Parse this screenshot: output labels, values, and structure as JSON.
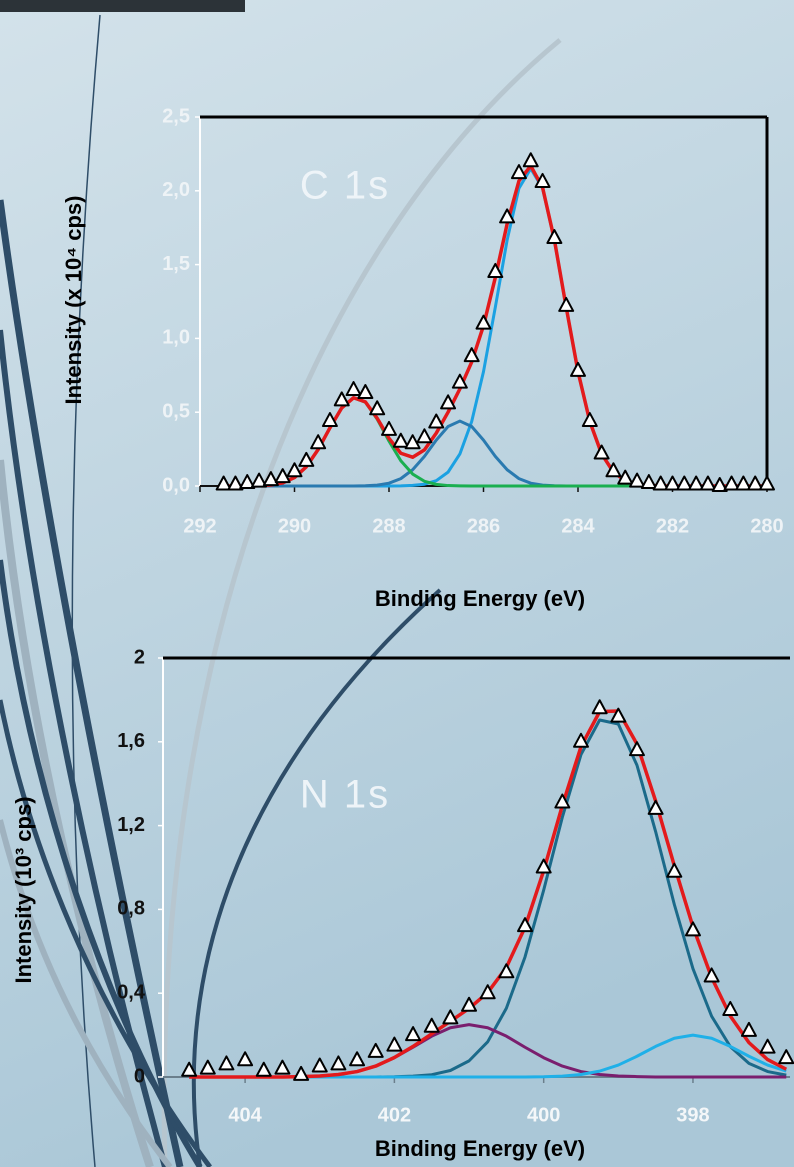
{
  "chart_data": [
    {
      "type": "line",
      "annotation": "C 1s",
      "x_label": "Binding Energy (eV)",
      "y_label": "Intensity (x 10⁴ cps)",
      "xlim": [
        292,
        280
      ],
      "xticks": [
        292,
        290,
        288,
        286,
        284,
        282,
        280
      ],
      "ylim": [
        0,
        2.5
      ],
      "yticks": [
        {
          "value": 0,
          "label": "0,0"
        },
        {
          "value": 0.5,
          "label": "0,5"
        },
        {
          "value": 1,
          "label": "1,0"
        },
        {
          "value": 1.5,
          "label": "1,5"
        },
        {
          "value": 2,
          "label": "2,0"
        },
        {
          "value": 2.5,
          "label": "2,5"
        }
      ],
      "x": [
        291.5,
        291.25,
        291,
        290.75,
        290.5,
        290.25,
        290,
        289.75,
        289.5,
        289.25,
        289,
        288.75,
        288.5,
        288.25,
        288,
        287.75,
        287.5,
        287.25,
        287,
        286.75,
        286.5,
        286.25,
        286,
        285.75,
        285.5,
        285.25,
        285,
        284.75,
        284.5,
        284.25,
        284,
        283.75,
        283.5,
        283.25,
        283,
        282.75,
        282.5,
        282.25,
        282,
        281.75,
        281.5,
        281.25,
        281,
        280.75,
        280.5,
        280.25,
        280
      ],
      "series": [
        {
          "marker": "triangle",
          "color": "#000000",
          "values": [
            0.01,
            0.01,
            0.02,
            0.03,
            0.04,
            0.06,
            0.1,
            0.17,
            0.29,
            0.44,
            0.58,
            0.65,
            0.63,
            0.52,
            0.38,
            0.3,
            0.29,
            0.33,
            0.43,
            0.56,
            0.7,
            0.88,
            1.1,
            1.45,
            1.82,
            2.12,
            2.2,
            2.06,
            1.68,
            1.22,
            0.78,
            0.44,
            0.22,
            0.1,
            0.05,
            0.03,
            0.02,
            0.01,
            0.01,
            0.01,
            0.01,
            0.01,
            0,
            0.01,
            0.01,
            0.01,
            0.01
          ]
        },
        {
          "color": "#1ba1e2",
          "values": [
            0,
            0,
            0,
            0,
            0,
            0,
            0,
            0,
            0,
            0,
            0,
            0,
            0,
            0,
            0,
            0.001,
            0.004,
            0.012,
            0.036,
            0.094,
            0.217,
            0.437,
            0.775,
            1.211,
            1.666,
            2.017,
            2.15,
            2.017,
            1.666,
            1.211,
            0.775,
            0.437,
            0.217,
            0.094,
            0.036,
            0.012,
            0.004,
            0.001,
            0,
            0,
            0,
            0,
            0,
            0,
            0,
            0,
            0
          ]
        },
        {
          "color": "#2a7ab0",
          "values": [
            0,
            0,
            0,
            0,
            0,
            0,
            0,
            0,
            0,
            0,
            0,
            0,
            0.002,
            0.006,
            0.019,
            0.05,
            0.11,
            0.201,
            0.311,
            0.403,
            0.44,
            0.403,
            0.311,
            0.201,
            0.11,
            0.05,
            0.019,
            0.006,
            0.002,
            0,
            0,
            0,
            0,
            0,
            0,
            0,
            0,
            0,
            0,
            0,
            0,
            0,
            0,
            0,
            0,
            0,
            0
          ]
        },
        {
          "color": "#1aaf50",
          "values": [
            0,
            0,
            0,
            0.002,
            0.007,
            0.021,
            0.057,
            0.13,
            0.247,
            0.394,
            0.529,
            0.598,
            0.568,
            0.453,
            0.304,
            0.171,
            0.081,
            0.032,
            0.011,
            0.003,
            0.001,
            0,
            0,
            0,
            0,
            0,
            0,
            0,
            0,
            0,
            0,
            0,
            0,
            0,
            0,
            0,
            0,
            0,
            0,
            0,
            0,
            0,
            0,
            0,
            0,
            0,
            0
          ]
        },
        {
          "color": "#e31a1c",
          "values": [
            0,
            0,
            0,
            0.002,
            0.007,
            0.021,
            0.057,
            0.13,
            0.247,
            0.394,
            0.529,
            0.598,
            0.57,
            0.459,
            0.323,
            0.222,
            0.195,
            0.245,
            0.358,
            0.5,
            0.658,
            0.84,
            1.086,
            1.412,
            1.776,
            2.067,
            2.169,
            2.023,
            1.668,
            1.211,
            0.775,
            0.437,
            0.217,
            0.094,
            0.036,
            0.012,
            0.004,
            0.001,
            0,
            0,
            0,
            0,
            0,
            0,
            0,
            0,
            0
          ]
        }
      ]
    },
    {
      "type": "line",
      "annotation": "N 1s",
      "x_label": "Binding Energy (eV)",
      "y_label": "Intensity (10³ cps)",
      "xlim": [
        405.1,
        396.7
      ],
      "xticks": [
        404,
        402,
        400,
        398
      ],
      "ylim": [
        0,
        2
      ],
      "yticks": [
        0,
        {
          "value": 0.4,
          "label": "0,4"
        },
        {
          "value": 0.8,
          "label": "0,8"
        },
        {
          "value": 1.2,
          "label": "1,2"
        },
        {
          "value": 1.6,
          "label": "1,6"
        },
        2
      ],
      "x": [
        404.75,
        404.5,
        404.25,
        404,
        403.75,
        403.5,
        403.25,
        403,
        402.75,
        402.5,
        402.25,
        402,
        401.75,
        401.5,
        401.25,
        401,
        400.75,
        400.5,
        400.25,
        400,
        399.75,
        399.5,
        399.25,
        399,
        398.75,
        398.5,
        398.25,
        398,
        397.75,
        397.5,
        397.25,
        397,
        396.75
      ],
      "series": [
        {
          "marker": "triangle",
          "color": "#000000",
          "values": [
            0.03,
            0.04,
            0.06,
            0.08,
            0.03,
            0.04,
            0.01,
            0.05,
            0.06,
            0.08,
            0.12,
            0.15,
            0.2,
            0.24,
            0.28,
            0.34,
            0.4,
            0.5,
            0.72,
            1.0,
            1.31,
            1.6,
            1.76,
            1.72,
            1.56,
            1.28,
            0.98,
            0.7,
            0.48,
            0.32,
            0.22,
            0.14,
            0.09
          ]
        },
        {
          "color": "#1b6a8a",
          "values": [
            0,
            0,
            0,
            0,
            0,
            0,
            0,
            0,
            0,
            0,
            0,
            0.001,
            0.004,
            0.011,
            0.031,
            0.077,
            0.168,
            0.328,
            0.573,
            0.892,
            1.24,
            1.539,
            1.704,
            1.685,
            1.488,
            1.171,
            0.824,
            0.517,
            0.29,
            0.145,
            0.065,
            0.026,
            0.009
          ]
        },
        {
          "color": "#7a1e6e",
          "values": [
            0,
            0,
            0,
            0,
            0,
            0,
            0.002,
            0.005,
            0.012,
            0.026,
            0.052,
            0.092,
            0.142,
            0.195,
            0.235,
            0.25,
            0.235,
            0.195,
            0.142,
            0.092,
            0.052,
            0.026,
            0.012,
            0.005,
            0.002,
            0,
            0,
            0,
            0,
            0,
            0,
            0,
            0
          ]
        },
        {
          "color": "#1fb0e8",
          "values": [
            0,
            0,
            0,
            0,
            0,
            0,
            0,
            0,
            0,
            0,
            0,
            0,
            0,
            0,
            0,
            0,
            0,
            0,
            0,
            0.001,
            0.004,
            0.012,
            0.028,
            0.057,
            0.099,
            0.146,
            0.185,
            0.2,
            0.185,
            0.146,
            0.099,
            0.057,
            0.028
          ]
        },
        {
          "color": "#e31a1c",
          "values": [
            0,
            0,
            0,
            0,
            0,
            0,
            0.002,
            0.005,
            0.012,
            0.026,
            0.052,
            0.093,
            0.146,
            0.206,
            0.266,
            0.327,
            0.403,
            0.523,
            0.715,
            0.985,
            1.296,
            1.577,
            1.744,
            1.747,
            1.589,
            1.317,
            1.009,
            0.717,
            0.475,
            0.291,
            0.164,
            0.083,
            0.037
          ]
        }
      ]
    }
  ]
}
